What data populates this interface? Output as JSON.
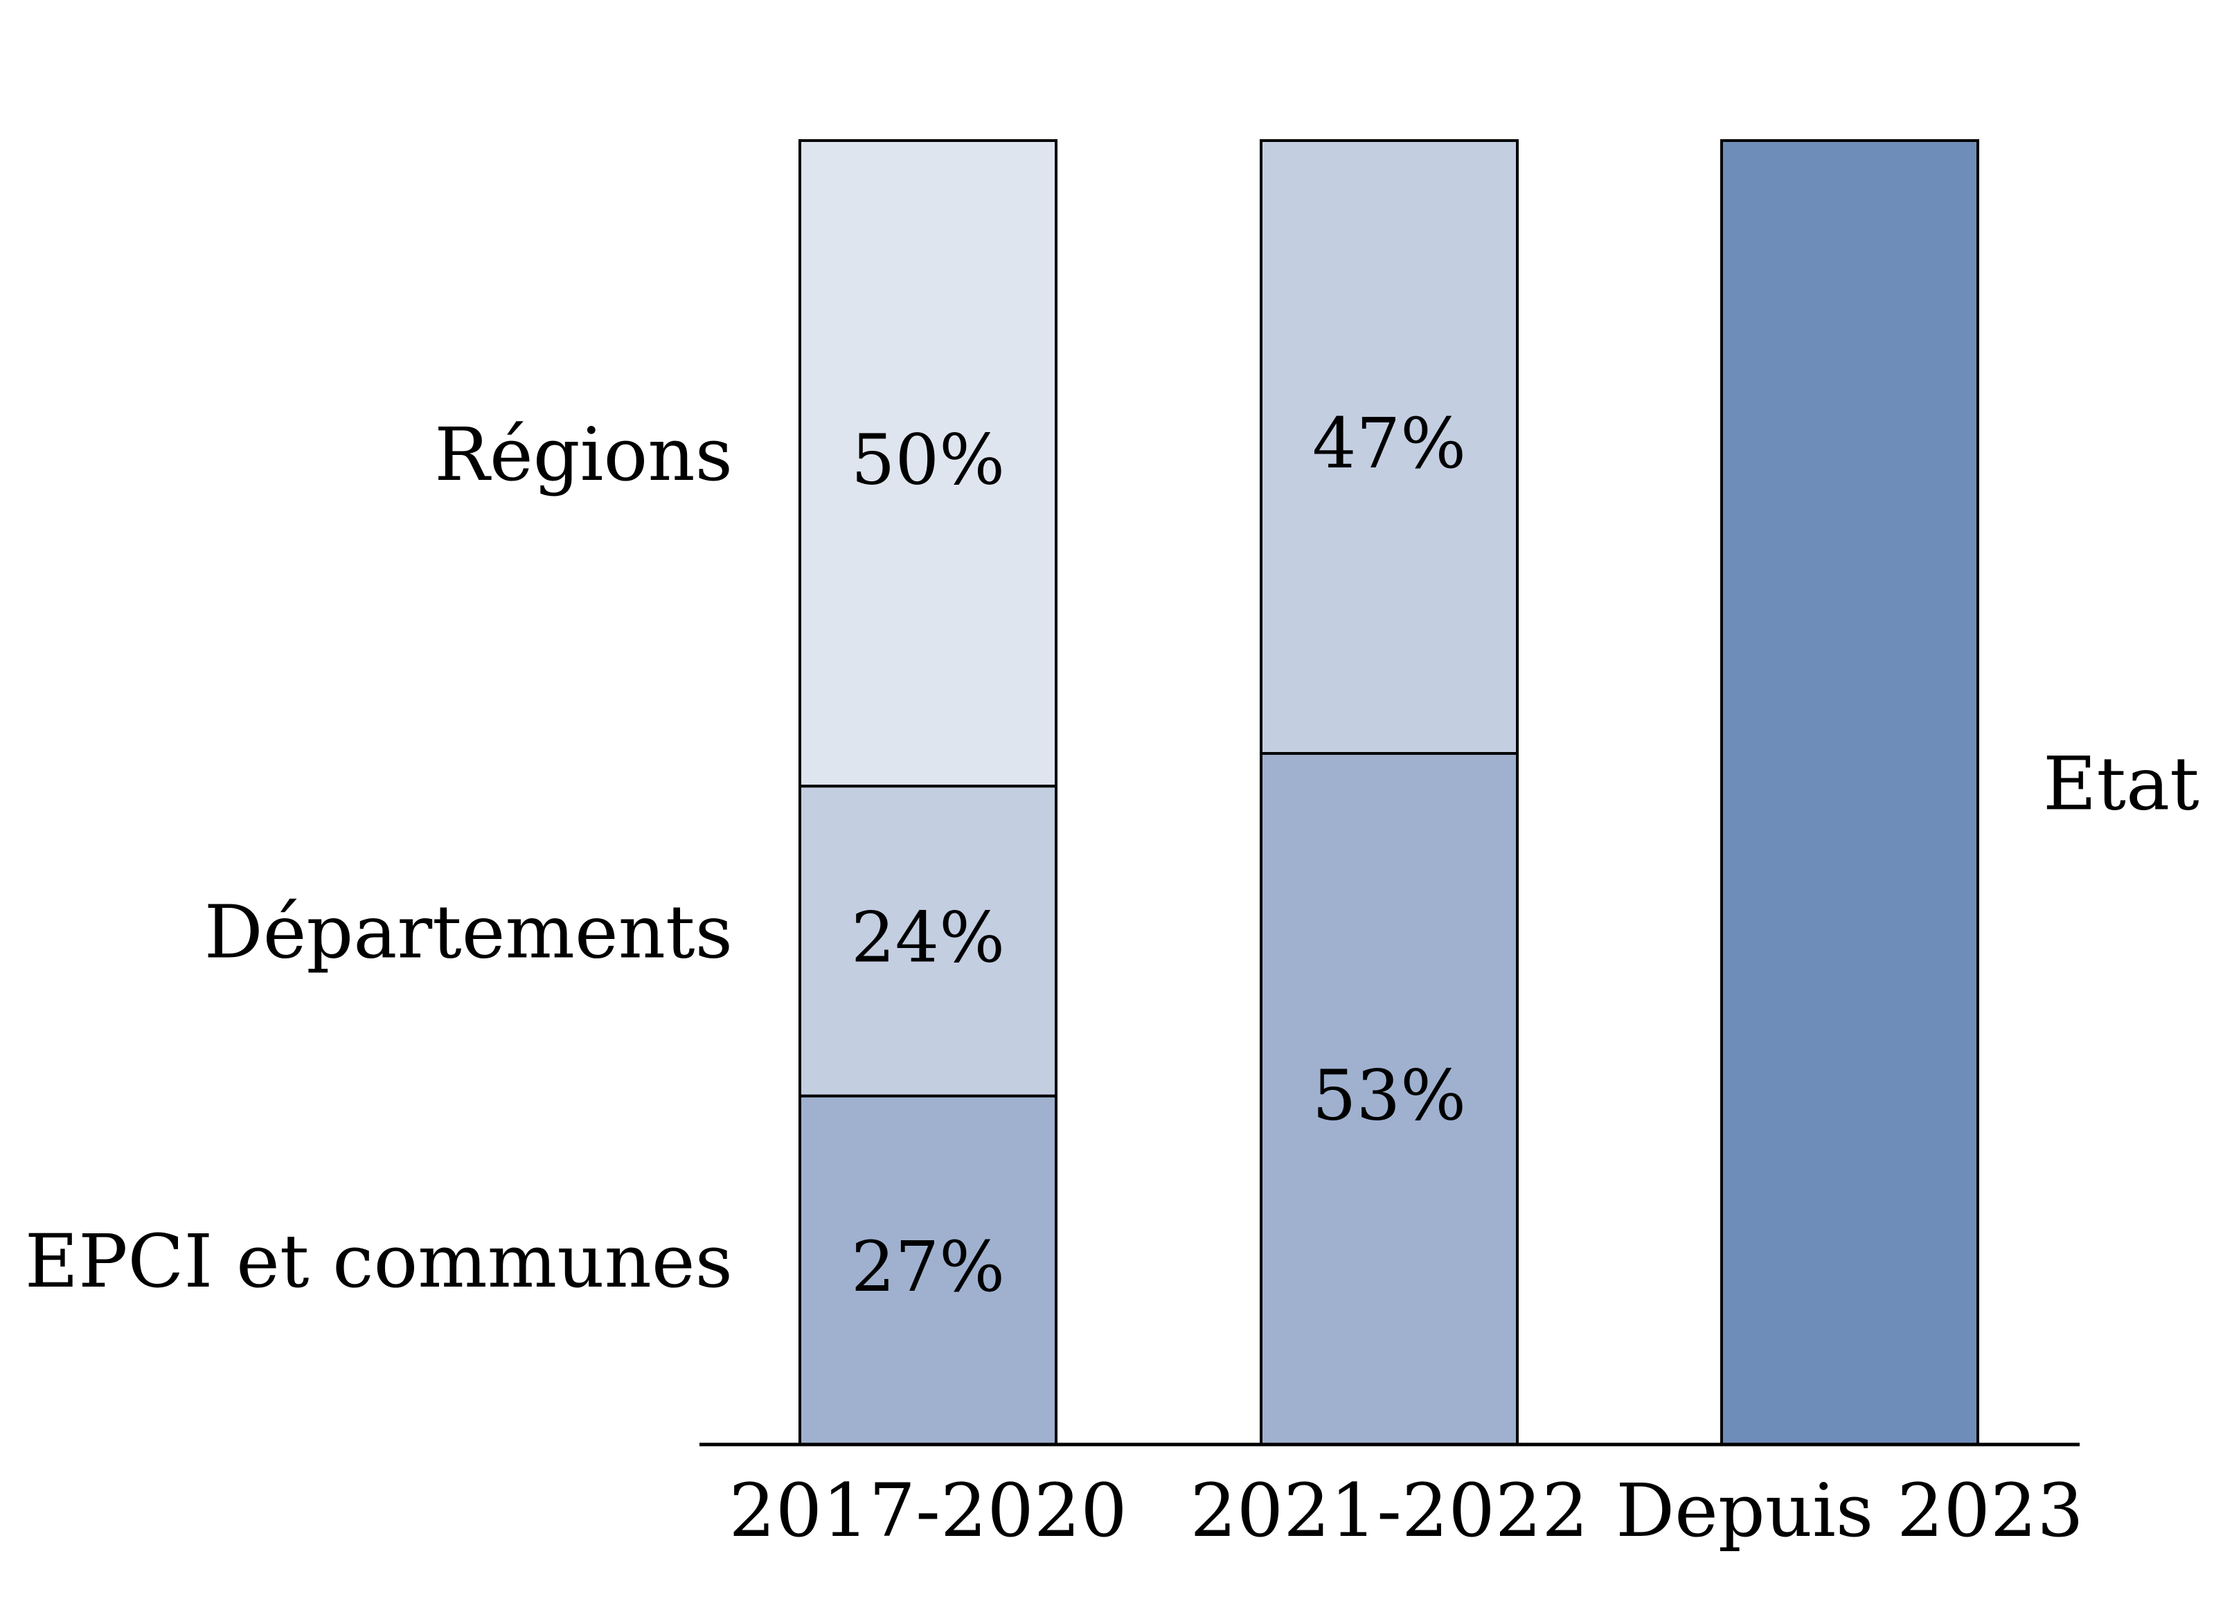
{
  "chart_data": {
    "type": "bar",
    "stacked": true,
    "normalized": true,
    "categories": [
      "2017-2020",
      "2021-2022",
      "Depuis 2023"
    ],
    "ylim": [
      0,
      100
    ],
    "grid": false,
    "legend": "inline-labels",
    "title": "",
    "xlabel": "",
    "ylabel": "",
    "series": [
      {
        "name": "EPCI et communes",
        "values": [
          27,
          null,
          null
        ],
        "labels": [
          "27%",
          "",
          ""
        ],
        "color": "#9fb1cf"
      },
      {
        "name": "Départements",
        "values": [
          24,
          null,
          null
        ],
        "labels": [
          "24%",
          "",
          ""
        ],
        "color": "#c3cee1"
      },
      {
        "name": "Régions",
        "values": [
          50,
          47,
          null
        ],
        "labels": [
          "50%",
          "47%",
          ""
        ],
        "color": "#dfe5ef"
      },
      {
        "name": "",
        "values": [
          null,
          53,
          null
        ],
        "labels": [
          "",
          "53%",
          ""
        ],
        "color": "#9fb1cf"
      },
      {
        "name": "Etat",
        "values": [
          null,
          null,
          100
        ],
        "labels": [
          "",
          "",
          ""
        ],
        "color": "#6f8db9"
      }
    ],
    "bars": [
      {
        "category": "2017-2020",
        "segments": [
          {
            "group": "EPCI et communes",
            "value": 27,
            "label": "27%",
            "color": "#9fb1cf"
          },
          {
            "group": "Départements",
            "value": 24,
            "label": "24%",
            "color": "#c3cee1"
          },
          {
            "group": "Régions",
            "value": 50,
            "label": "50%",
            "color": "#dfe5ef"
          }
        ]
      },
      {
        "category": "2021-2022",
        "segments": [
          {
            "group": "",
            "value": 53,
            "label": "53%",
            "color": "#9fb1cf"
          },
          {
            "group": "Régions",
            "value": 47,
            "label": "47%",
            "color": "#c3cee1"
          }
        ]
      },
      {
        "category": "Depuis 2023",
        "segments": [
          {
            "group": "Etat",
            "value": 100,
            "label": "",
            "color": "#6f8db9"
          }
        ]
      }
    ],
    "left_labels": [
      "Régions",
      "Départements",
      "EPCI et communes"
    ],
    "right_labels": [
      "Etat"
    ]
  }
}
